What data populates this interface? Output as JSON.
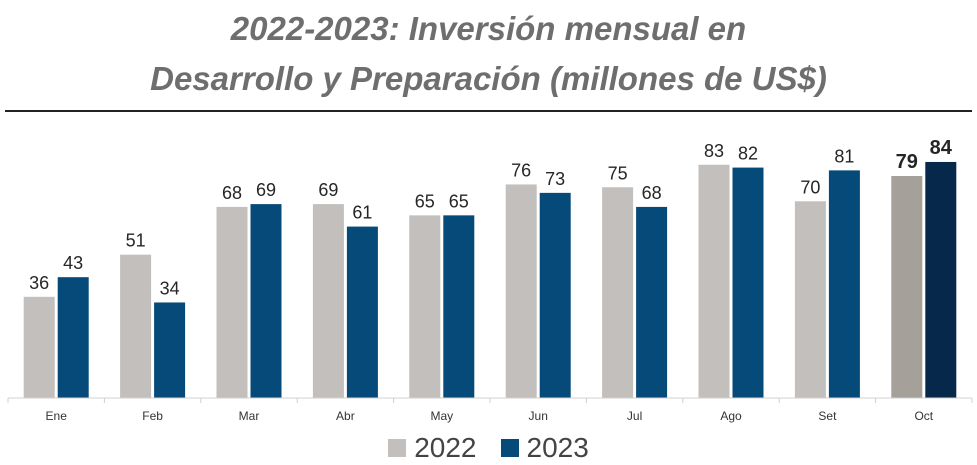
{
  "chart_data": {
    "type": "bar",
    "title_line1": "2022-2023: Inversión mensual en",
    "title_line2": "Desarrollo y Preparación (millones de US$)",
    "categories": [
      "Ene",
      "Feb",
      "Mar",
      "Abr",
      "May",
      "Jun",
      "Jul",
      "Ago",
      "Set",
      "Oct"
    ],
    "series": [
      {
        "name": "2022",
        "values": [
          36,
          51,
          68,
          69,
          65,
          76,
          75,
          83,
          70,
          79
        ]
      },
      {
        "name": "2023",
        "values": [
          43,
          34,
          69,
          61,
          65,
          73,
          68,
          82,
          81,
          84
        ]
      }
    ],
    "xlabel": "",
    "ylabel": "",
    "ylim": [
      0,
      100
    ],
    "grid": false,
    "legend_position": "bottom",
    "highlight_category": "Oct"
  },
  "colors": {
    "series_2022": "#c2bfbc",
    "series_2023": "#064a7a",
    "highlight_2022": "#a5a09a",
    "highlight_2023": "#06284a"
  }
}
